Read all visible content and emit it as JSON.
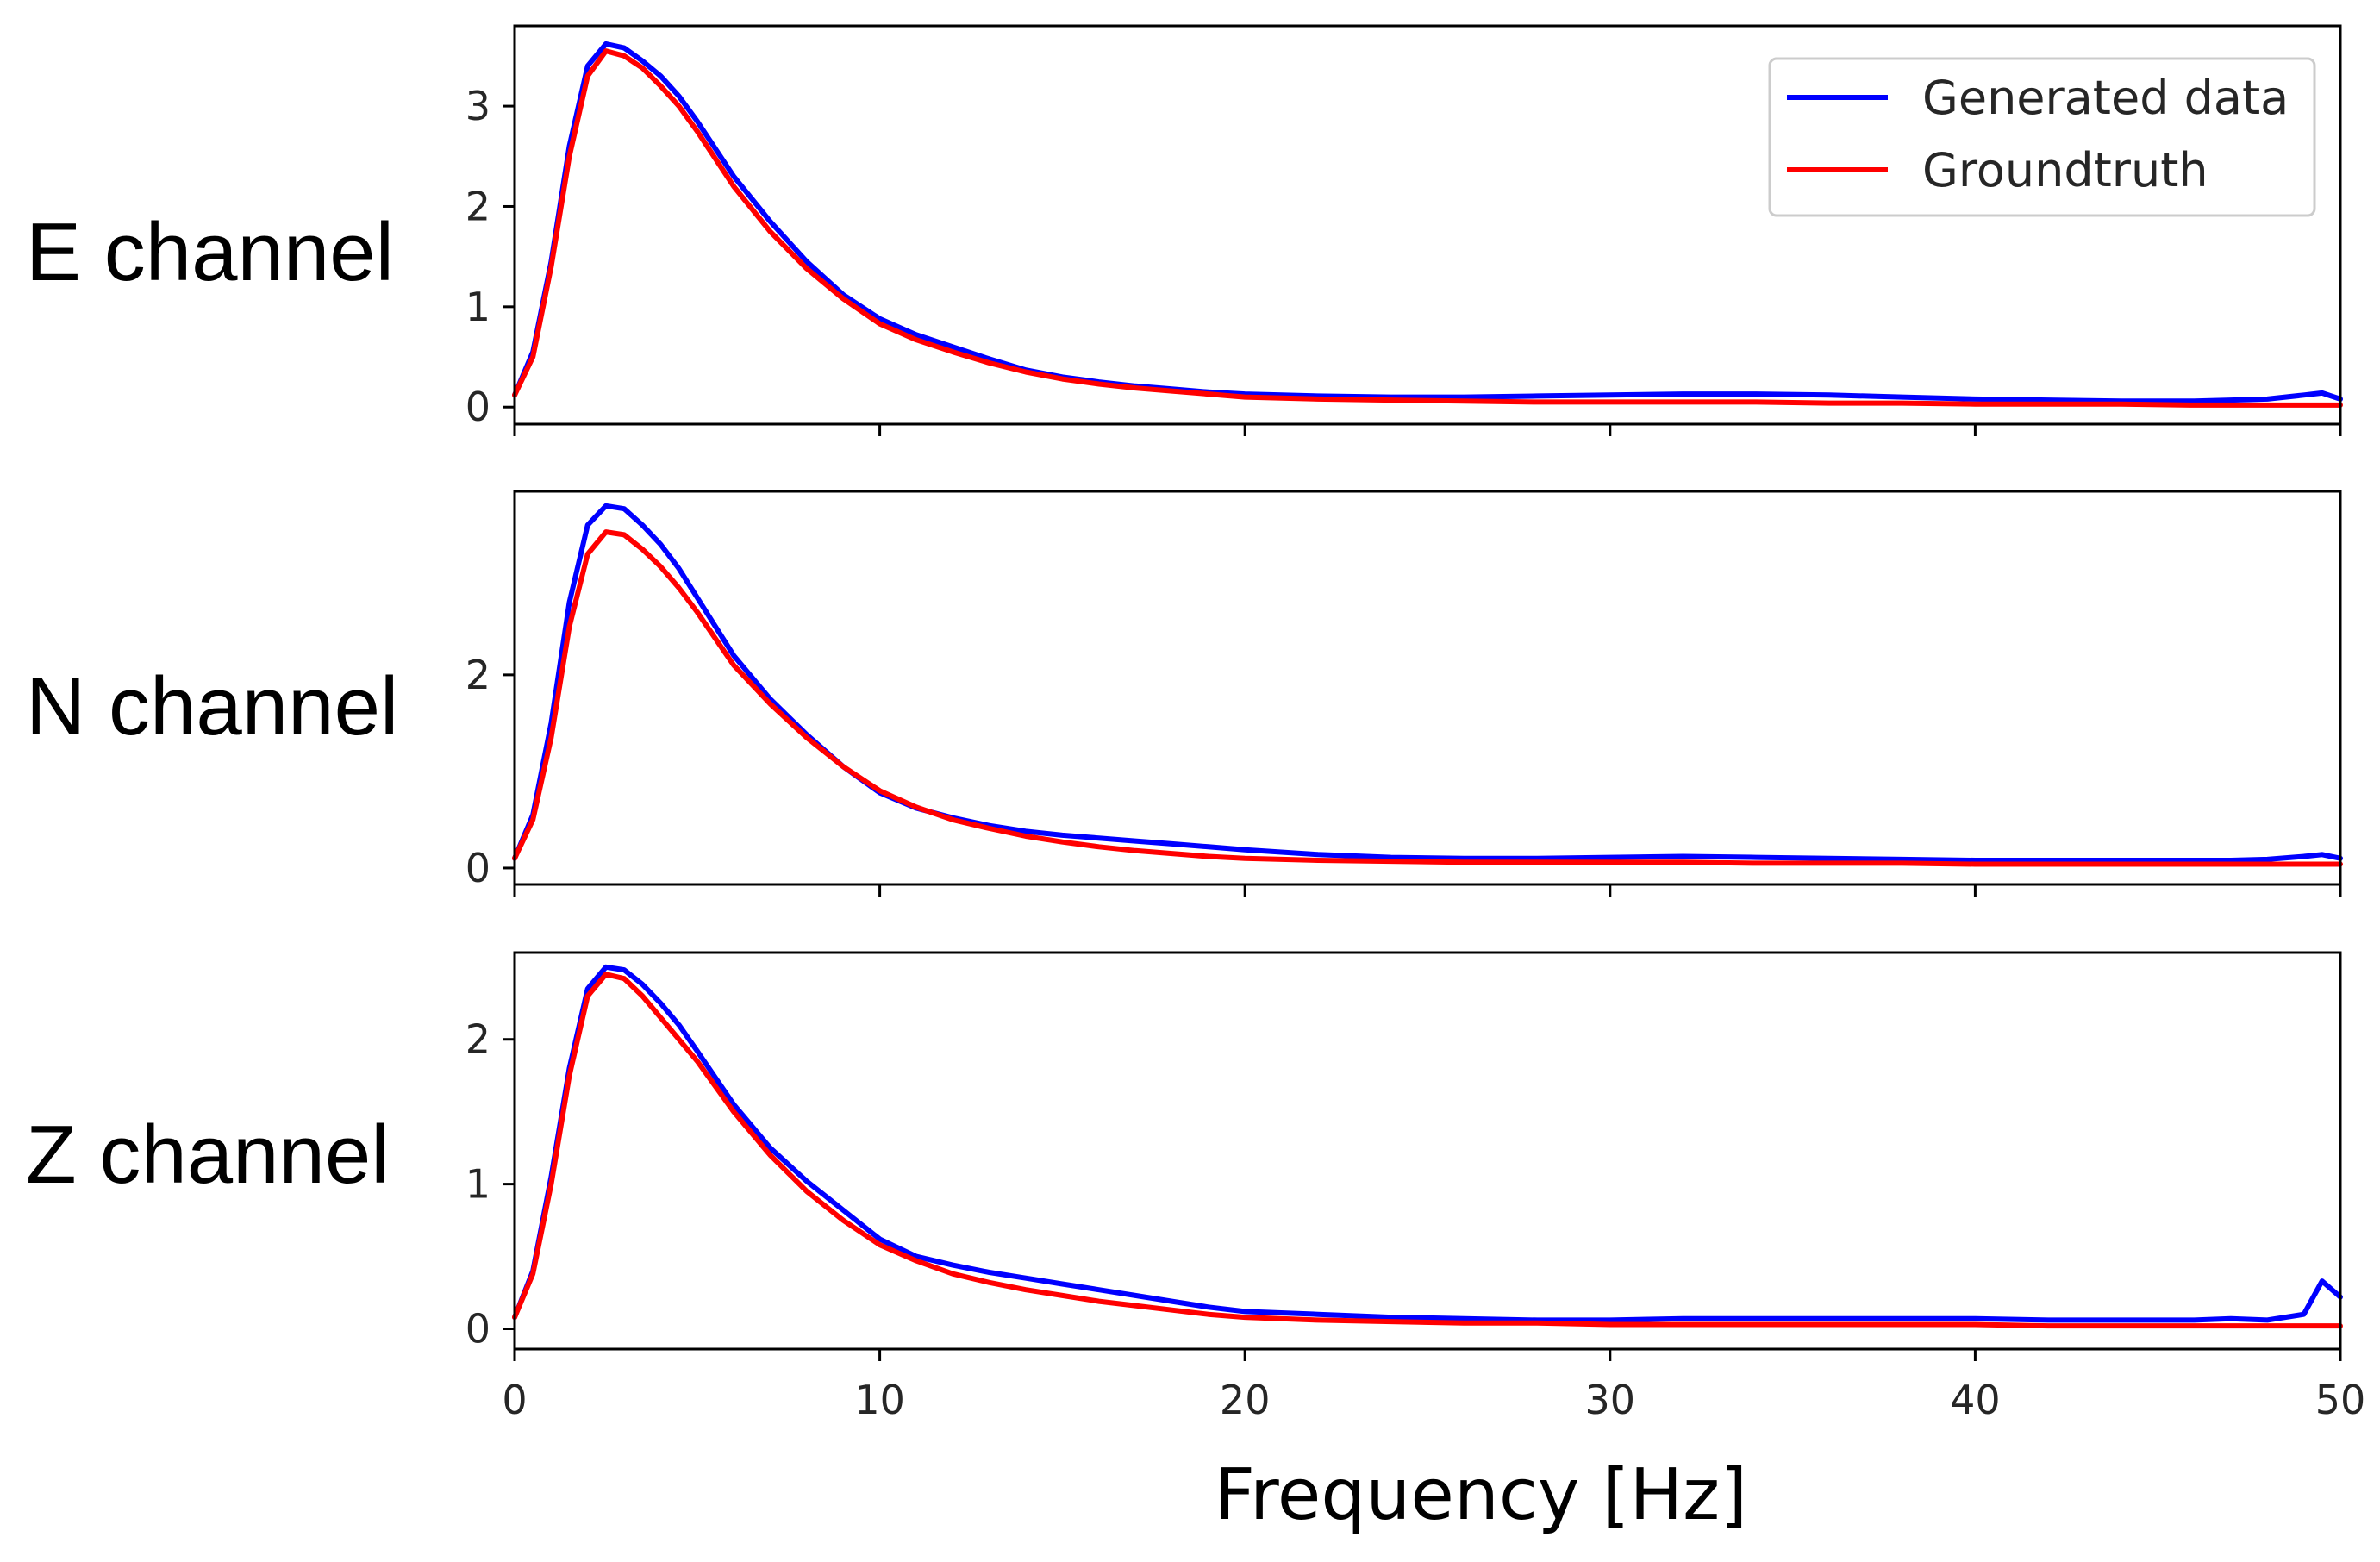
{
  "chart_data": {
    "type": "line",
    "xlabel": "Frequency [Hz]",
    "xlim": [
      0,
      50
    ],
    "xticks": [
      0,
      10,
      20,
      30,
      40,
      50
    ],
    "legend": {
      "placement": "top-right",
      "entries": [
        {
          "name": "Generated data",
          "color": "#0000ff"
        },
        {
          "name": "Groundtruth",
          "color": "#ff0000"
        }
      ]
    },
    "x": [
      0,
      0.5,
      1,
      1.5,
      2,
      2.5,
      3,
      3.5,
      4,
      4.5,
      5,
      6,
      7,
      8,
      9,
      10,
      11,
      12,
      13,
      14,
      15,
      16,
      17,
      18,
      19,
      20,
      22,
      24,
      26,
      28,
      30,
      32,
      34,
      36,
      38,
      40,
      42,
      44,
      46,
      47,
      48,
      49,
      49.5,
      50
    ],
    "panels": [
      {
        "label": "E channel",
        "ylim": [
          -0.17,
          3.8
        ],
        "yticks": [
          0,
          1,
          2,
          3
        ],
        "series": [
          {
            "name": "Generated data",
            "color": "#0000ff",
            "values": [
              0.12,
              0.55,
              1.45,
              2.6,
              3.4,
              3.62,
              3.58,
              3.45,
              3.3,
              3.1,
              2.85,
              2.3,
              1.85,
              1.45,
              1.12,
              0.88,
              0.72,
              0.6,
              0.48,
              0.37,
              0.3,
              0.25,
              0.21,
              0.18,
              0.15,
              0.13,
              0.11,
              0.1,
              0.1,
              0.11,
              0.12,
              0.13,
              0.13,
              0.12,
              0.1,
              0.08,
              0.07,
              0.06,
              0.06,
              0.07,
              0.08,
              0.12,
              0.14,
              0.08
            ]
          },
          {
            "name": "Groundtruth",
            "color": "#ff0000",
            "values": [
              0.12,
              0.5,
              1.4,
              2.5,
              3.3,
              3.55,
              3.5,
              3.38,
              3.2,
              3.0,
              2.75,
              2.2,
              1.75,
              1.38,
              1.08,
              0.83,
              0.67,
              0.55,
              0.44,
              0.35,
              0.28,
              0.23,
              0.19,
              0.16,
              0.13,
              0.1,
              0.08,
              0.07,
              0.06,
              0.05,
              0.05,
              0.05,
              0.05,
              0.04,
              0.04,
              0.03,
              0.03,
              0.03,
              0.02,
              0.02,
              0.02,
              0.02,
              0.02,
              0.02
            ]
          }
        ]
      },
      {
        "label": "N channel",
        "ylim": [
          -0.17,
          3.9
        ],
        "yticks": [
          0,
          2
        ],
        "series": [
          {
            "name": "Generated data",
            "color": "#0000ff",
            "values": [
              0.1,
              0.55,
              1.5,
              2.75,
              3.55,
              3.75,
              3.72,
              3.55,
              3.35,
              3.1,
              2.8,
              2.2,
              1.75,
              1.38,
              1.05,
              0.78,
              0.62,
              0.52,
              0.44,
              0.38,
              0.34,
              0.31,
              0.28,
              0.25,
              0.22,
              0.19,
              0.14,
              0.11,
              0.1,
              0.1,
              0.11,
              0.12,
              0.11,
              0.1,
              0.09,
              0.08,
              0.08,
              0.08,
              0.08,
              0.08,
              0.09,
              0.12,
              0.14,
              0.1
            ]
          },
          {
            "name": "Groundtruth",
            "color": "#ff0000",
            "values": [
              0.1,
              0.5,
              1.35,
              2.5,
              3.25,
              3.48,
              3.45,
              3.3,
              3.12,
              2.9,
              2.65,
              2.1,
              1.7,
              1.35,
              1.05,
              0.8,
              0.63,
              0.5,
              0.41,
              0.33,
              0.27,
              0.22,
              0.18,
              0.15,
              0.12,
              0.1,
              0.08,
              0.07,
              0.06,
              0.06,
              0.06,
              0.06,
              0.05,
              0.05,
              0.05,
              0.04,
              0.04,
              0.04,
              0.04,
              0.04,
              0.04,
              0.04,
              0.04,
              0.04
            ]
          }
        ]
      },
      {
        "label": "Z channel",
        "ylim": [
          -0.14,
          2.6
        ],
        "yticks": [
          0,
          1,
          2
        ],
        "series": [
          {
            "name": "Generated data",
            "color": "#0000ff",
            "values": [
              0.08,
              0.4,
              1.05,
              1.8,
              2.35,
              2.5,
              2.48,
              2.38,
              2.25,
              2.1,
              1.92,
              1.55,
              1.25,
              1.02,
              0.82,
              0.62,
              0.5,
              0.44,
              0.39,
              0.35,
              0.31,
              0.27,
              0.23,
              0.19,
              0.15,
              0.12,
              0.1,
              0.08,
              0.07,
              0.06,
              0.06,
              0.07,
              0.07,
              0.07,
              0.07,
              0.07,
              0.06,
              0.06,
              0.06,
              0.07,
              0.06,
              0.1,
              0.33,
              0.22
            ]
          },
          {
            "name": "Groundtruth",
            "color": "#ff0000",
            "values": [
              0.08,
              0.38,
              1.0,
              1.75,
              2.3,
              2.45,
              2.42,
              2.3,
              2.15,
              2.0,
              1.85,
              1.5,
              1.2,
              0.95,
              0.75,
              0.58,
              0.47,
              0.38,
              0.32,
              0.27,
              0.23,
              0.19,
              0.16,
              0.13,
              0.1,
              0.08,
              0.06,
              0.05,
              0.04,
              0.04,
              0.03,
              0.03,
              0.03,
              0.03,
              0.03,
              0.03,
              0.02,
              0.02,
              0.02,
              0.02,
              0.02,
              0.02,
              0.02,
              0.02
            ]
          }
        ]
      }
    ]
  }
}
